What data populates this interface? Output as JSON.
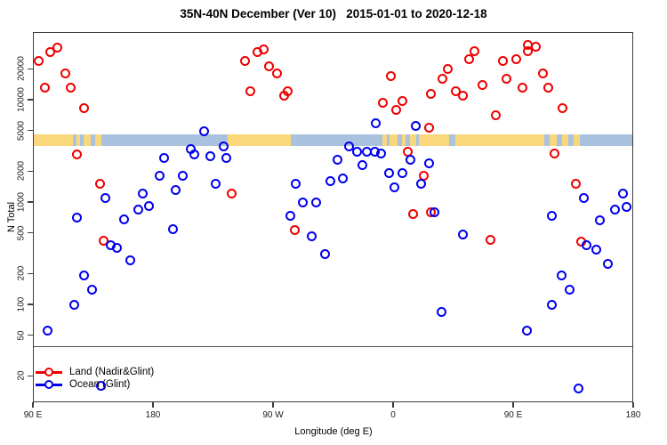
{
  "title": "35N-40N December (Ver 10)   2015-01-01 to 2020-12-18",
  "chart_data": {
    "type": "scatter",
    "title": "35N-40N December (Ver 10)   2015-01-01 to 2020-12-18",
    "xlabel": "Longitude (deg E)",
    "ylabel": "N Total",
    "x_axis": {
      "note": "longitude axis spans 450 degrees, wrapping from 90E eastward to 180 again",
      "range": [
        90,
        540
      ],
      "tick_values": [
        90,
        180,
        270,
        360,
        450,
        540
      ],
      "tick_labels": [
        "90 E",
        "180",
        "90 W",
        "0",
        "90 E",
        "180"
      ]
    },
    "y_axis": {
      "scale": "log",
      "range": [
        11,
        46000
      ],
      "tick_values": [
        20,
        50,
        100,
        200,
        500,
        1000,
        2000,
        5000,
        10000,
        20000
      ],
      "tick_labels": [
        "20",
        "50",
        "100",
        "200",
        "500",
        "1000",
        "2000",
        "5000",
        "10000",
        "20000"
      ]
    },
    "grid": "off",
    "threshold_line_n": 39,
    "surface_band": {
      "description": "land/ocean map strip across the 35N-40N latitude band",
      "n_top": 4600,
      "n_bottom": 3500,
      "land_color": "#FBD77C",
      "ocean_color": "#A9C2DF",
      "segments": [
        {
          "from": 90,
          "to": 120,
          "type": "land"
        },
        {
          "from": 120,
          "to": 122.5,
          "type": "ocean"
        },
        {
          "from": 122.5,
          "to": 125.5,
          "type": "land"
        },
        {
          "from": 125.5,
          "to": 128,
          "type": "ocean"
        },
        {
          "from": 128,
          "to": 133.5,
          "type": "land"
        },
        {
          "from": 133.5,
          "to": 136.5,
          "type": "ocean"
        },
        {
          "from": 136.5,
          "to": 141.5,
          "type": "land"
        },
        {
          "from": 141.5,
          "to": 236,
          "type": "ocean"
        },
        {
          "from": 236,
          "to": 283.5,
          "type": "land"
        },
        {
          "from": 283.5,
          "to": 352,
          "type": "ocean"
        },
        {
          "from": 352,
          "to": 355,
          "type": "land"
        },
        {
          "from": 355,
          "to": 357.5,
          "type": "ocean"
        },
        {
          "from": 357.5,
          "to": 363.5,
          "type": "land"
        },
        {
          "from": 363.5,
          "to": 366.5,
          "type": "ocean"
        },
        {
          "from": 366.5,
          "to": 369.5,
          "type": "land"
        },
        {
          "from": 369.5,
          "to": 372.5,
          "type": "ocean"
        },
        {
          "from": 372.5,
          "to": 377,
          "type": "land"
        },
        {
          "from": 377,
          "to": 379,
          "type": "ocean"
        },
        {
          "from": 379,
          "to": 402,
          "type": "land"
        },
        {
          "from": 402,
          "to": 406.5,
          "type": "ocean"
        },
        {
          "from": 406.5,
          "to": 473,
          "type": "land"
        },
        {
          "from": 473,
          "to": 477,
          "type": "ocean"
        },
        {
          "from": 477,
          "to": 482.5,
          "type": "land"
        },
        {
          "from": 482.5,
          "to": 486.5,
          "type": "ocean"
        },
        {
          "from": 486.5,
          "to": 491.5,
          "type": "land"
        },
        {
          "from": 491.5,
          "to": 495,
          "type": "ocean"
        },
        {
          "from": 495,
          "to": 500,
          "type": "land"
        },
        {
          "from": 500,
          "to": 540,
          "type": "ocean"
        }
      ]
    },
    "point_format": [
      "longitude_axis_deg",
      "n_total"
    ],
    "series": [
      {
        "name": "Land (Nadir&Glint)",
        "color": "#EE0000",
        "points": [
          [
            94,
            24000
          ],
          [
            102.7,
            29000
          ],
          [
            108,
            32000
          ],
          [
            99.3,
            13000
          ],
          [
            114,
            18000
          ],
          [
            118,
            13000
          ],
          [
            128,
            8200
          ],
          [
            123.3,
            2900
          ],
          [
            140,
            1500
          ],
          [
            239.3,
            1200
          ],
          [
            248.7,
            24000
          ],
          [
            258,
            29000
          ],
          [
            262.7,
            31000
          ],
          [
            267.3,
            21000
          ],
          [
            272.7,
            18000
          ],
          [
            252.7,
            12000
          ],
          [
            278,
            11000
          ],
          [
            281.3,
            12000
          ],
          [
            358,
            17000
          ],
          [
            352,
            9400
          ],
          [
            366.7,
            9800
          ],
          [
            362,
            7900
          ],
          [
            388,
            11500
          ],
          [
            371.3,
            3100
          ],
          [
            382.7,
            1800
          ],
          [
            375.3,
            770
          ],
          [
            387.3,
            5300
          ],
          [
            388,
            800
          ],
          [
            421.3,
            30000
          ],
          [
            417.3,
            25000
          ],
          [
            401.3,
            20000
          ],
          [
            397.3,
            16000
          ],
          [
            412,
            11000
          ],
          [
            407.3,
            12000
          ],
          [
            427.3,
            14000
          ],
          [
            442,
            24000
          ],
          [
            452,
            25000
          ],
          [
            445.3,
            16000
          ],
          [
            461.3,
            34000
          ],
          [
            466.7,
            33000
          ],
          [
            460.7,
            30000
          ],
          [
            472,
            18000
          ],
          [
            476,
            13000
          ],
          [
            456.7,
            13000
          ],
          [
            437.3,
            7000
          ],
          [
            486.7,
            8200
          ],
          [
            481.3,
            3000
          ],
          [
            497.3,
            1500
          ],
          [
            286,
            530
          ],
          [
            433.3,
            430
          ],
          [
            500.7,
            410
          ],
          [
            142.7,
            420
          ]
        ]
      },
      {
        "name": "Ocean (Glint)",
        "color": "#0000EE",
        "points": [
          [
            218,
            4900
          ],
          [
            208,
            3300
          ],
          [
            211.3,
            2900
          ],
          [
            222.7,
            2800
          ],
          [
            232.7,
            3500
          ],
          [
            234.7,
            2700
          ],
          [
            188,
            2700
          ],
          [
            184.7,
            1800
          ],
          [
            172,
            1200
          ],
          [
            176.7,
            920
          ],
          [
            168.7,
            850
          ],
          [
            158,
            680
          ],
          [
            202,
            1800
          ],
          [
            196.7,
            1300
          ],
          [
            226.7,
            1500
          ],
          [
            122.7,
            710
          ],
          [
            144,
            1100
          ],
          [
            347.3,
            5900
          ],
          [
            377.3,
            5500
          ],
          [
            326.7,
            3500
          ],
          [
            332.7,
            3100
          ],
          [
            340,
            3100
          ],
          [
            346,
            3100
          ],
          [
            351.3,
            3000
          ],
          [
            318,
            2600
          ],
          [
            336.7,
            2300
          ],
          [
            372.7,
            2600
          ],
          [
            386.7,
            2400
          ],
          [
            357.3,
            1900
          ],
          [
            366.7,
            1900
          ],
          [
            360.7,
            1400
          ],
          [
            381.3,
            1500
          ],
          [
            313.3,
            1600
          ],
          [
            322,
            1700
          ],
          [
            287.3,
            1500
          ],
          [
            292,
            1000
          ],
          [
            302,
            1000
          ],
          [
            283.3,
            730
          ],
          [
            390.7,
            790
          ],
          [
            502.7,
            1100
          ],
          [
            532,
            1200
          ],
          [
            526,
            850
          ],
          [
            534.7,
            900
          ],
          [
            479.3,
            740
          ],
          [
            515.3,
            670
          ],
          [
            412,
            480
          ],
          [
            505.3,
            380
          ],
          [
            512,
            340
          ],
          [
            521.3,
            250
          ],
          [
            486,
            190
          ],
          [
            492,
            140
          ],
          [
            479.3,
            100
          ],
          [
            396,
            85
          ],
          [
            460,
            55
          ],
          [
            498.7,
            15
          ],
          [
            298.7,
            460
          ],
          [
            308.7,
            310
          ],
          [
            148,
            380
          ],
          [
            153.3,
            360
          ],
          [
            163.3,
            270
          ],
          [
            194.7,
            540
          ],
          [
            128,
            190
          ],
          [
            134,
            140
          ],
          [
            121.3,
            100
          ],
          [
            100.7,
            55
          ],
          [
            141.3,
            16
          ]
        ]
      }
    ],
    "legend": {
      "position": "bottom-left-inside"
    }
  }
}
